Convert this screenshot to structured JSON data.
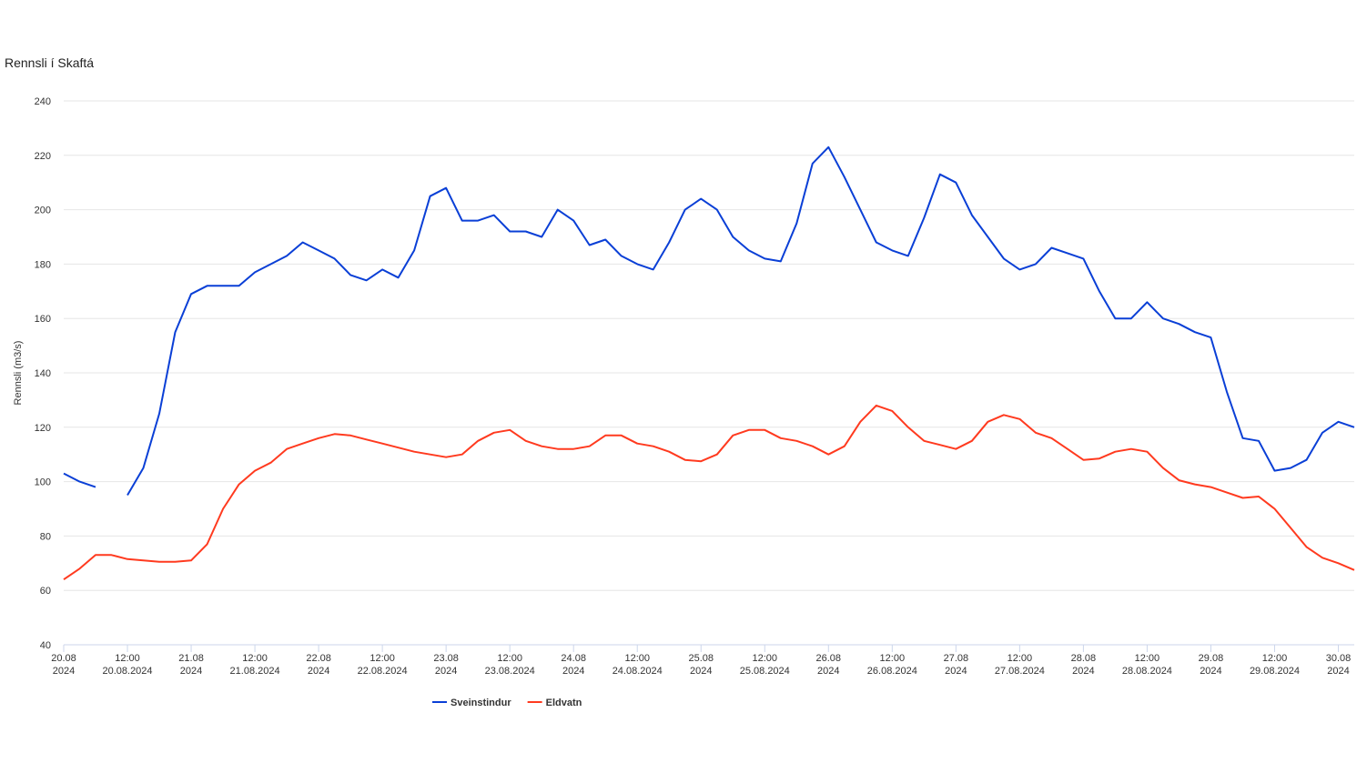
{
  "chart_data": {
    "type": "line",
    "title": "Rennsli í Skaftá",
    "y_label": "Rennsli (m3/s)",
    "x": [
      "2024-08-20 00:00",
      "2024-08-20 03:00",
      "2024-08-20 06:00",
      "2024-08-20 09:00",
      "2024-08-20 12:00",
      "2024-08-20 15:00",
      "2024-08-20 18:00",
      "2024-08-20 21:00",
      "2024-08-21 00:00",
      "2024-08-21 03:00",
      "2024-08-21 06:00",
      "2024-08-21 09:00",
      "2024-08-21 12:00",
      "2024-08-21 15:00",
      "2024-08-21 18:00",
      "2024-08-21 21:00",
      "2024-08-22 00:00",
      "2024-08-22 03:00",
      "2024-08-22 06:00",
      "2024-08-22 09:00",
      "2024-08-22 12:00",
      "2024-08-22 15:00",
      "2024-08-22 18:00",
      "2024-08-22 21:00",
      "2024-08-23 00:00",
      "2024-08-23 03:00",
      "2024-08-23 06:00",
      "2024-08-23 09:00",
      "2024-08-23 12:00",
      "2024-08-23 15:00",
      "2024-08-23 18:00",
      "2024-08-23 21:00",
      "2024-08-24 00:00",
      "2024-08-24 03:00",
      "2024-08-24 06:00",
      "2024-08-24 09:00",
      "2024-08-24 12:00",
      "2024-08-24 15:00",
      "2024-08-24 18:00",
      "2024-08-24 21:00",
      "2024-08-25 00:00",
      "2024-08-25 03:00",
      "2024-08-25 06:00",
      "2024-08-25 09:00",
      "2024-08-25 12:00",
      "2024-08-25 15:00",
      "2024-08-25 18:00",
      "2024-08-25 21:00",
      "2024-08-26 00:00",
      "2024-08-26 03:00",
      "2024-08-26 06:00",
      "2024-08-26 09:00",
      "2024-08-26 12:00",
      "2024-08-26 15:00",
      "2024-08-26 18:00",
      "2024-08-26 21:00",
      "2024-08-27 00:00",
      "2024-08-27 03:00",
      "2024-08-27 06:00",
      "2024-08-27 09:00",
      "2024-08-27 12:00",
      "2024-08-27 15:00",
      "2024-08-27 18:00",
      "2024-08-27 21:00",
      "2024-08-28 00:00",
      "2024-08-28 03:00",
      "2024-08-28 06:00",
      "2024-08-28 09:00",
      "2024-08-28 12:00",
      "2024-08-28 15:00",
      "2024-08-28 18:00",
      "2024-08-28 21:00",
      "2024-08-29 00:00",
      "2024-08-29 03:00",
      "2024-08-29 06:00",
      "2024-08-29 09:00",
      "2024-08-29 12:00",
      "2024-08-29 15:00",
      "2024-08-29 18:00",
      "2024-08-29 21:00",
      "2024-08-30 00:00",
      "2024-08-30 03:00"
    ],
    "series": [
      {
        "name": "Sveinstindur",
        "color": "#0a3fd6",
        "values": [
          103,
          100,
          98,
          null,
          95,
          105,
          125,
          155,
          169,
          172,
          172,
          172,
          177,
          180,
          183,
          188,
          185,
          182,
          176,
          174,
          178,
          175,
          185,
          205,
          208,
          196,
          196,
          198,
          192,
          192,
          190,
          200,
          196,
          187,
          189,
          183,
          180,
          178,
          188,
          200,
          204,
          200,
          190,
          185,
          182,
          181,
          195,
          217,
          223,
          212,
          200,
          188,
          185,
          183,
          197,
          213,
          210,
          198,
          190,
          182,
          178,
          180,
          186,
          184,
          182,
          170,
          160,
          160,
          166,
          160,
          158,
          155,
          153,
          133,
          116,
          115,
          104,
          105,
          108,
          118,
          122,
          120
        ]
      },
      {
        "name": "Eldvatn",
        "color": "#ff3a1f",
        "values": [
          64,
          68,
          73,
          73,
          71.5,
          71,
          70.5,
          70.5,
          71,
          77,
          90,
          99,
          104,
          107,
          112,
          114,
          116,
          117.5,
          117,
          115.5,
          114,
          112.5,
          111,
          110,
          109,
          110,
          115,
          118,
          119,
          115,
          113,
          112,
          112,
          113,
          117,
          117,
          114,
          113,
          111,
          108,
          107.5,
          110,
          117,
          119,
          119,
          116,
          115,
          113,
          110,
          113,
          122,
          128,
          126,
          120,
          115,
          113.5,
          112,
          115,
          122,
          124.5,
          123,
          118,
          116,
          112,
          108,
          108.5,
          111,
          112,
          111,
          105,
          100.5,
          99,
          98,
          96,
          94,
          94.5,
          90,
          83,
          76,
          72,
          70,
          67.5
        ]
      }
    ],
    "xlim": [
      "2024-08-20 00:00",
      "2024-08-30 03:00"
    ],
    "xticks": [
      {
        "value": "2024-08-20 00:00",
        "label": "20.08\n2024"
      },
      {
        "value": "2024-08-20 12:00",
        "label": "12:00\n20.08.2024"
      },
      {
        "value": "2024-08-21 00:00",
        "label": "21.08\n2024"
      },
      {
        "value": "2024-08-21 12:00",
        "label": "12:00\n21.08.2024"
      },
      {
        "value": "2024-08-22 00:00",
        "label": "22.08\n2024"
      },
      {
        "value": "2024-08-22 12:00",
        "label": "12:00\n22.08.2024"
      },
      {
        "value": "2024-08-23 00:00",
        "label": "23.08\n2024"
      },
      {
        "value": "2024-08-23 12:00",
        "label": "12:00\n23.08.2024"
      },
      {
        "value": "2024-08-24 00:00",
        "label": "24.08\n2024"
      },
      {
        "value": "2024-08-24 12:00",
        "label": "12:00\n24.08.2024"
      },
      {
        "value": "2024-08-25 00:00",
        "label": "25.08\n2024"
      },
      {
        "value": "2024-08-25 12:00",
        "label": "12:00\n25.08.2024"
      },
      {
        "value": "2024-08-26 00:00",
        "label": "26.08\n2024"
      },
      {
        "value": "2024-08-26 12:00",
        "label": "12:00\n26.08.2024"
      },
      {
        "value": "2024-08-27 00:00",
        "label": "27.08\n2024"
      },
      {
        "value": "2024-08-27 12:00",
        "label": "12:00\n27.08.2024"
      },
      {
        "value": "2024-08-28 00:00",
        "label": "28.08\n2024"
      },
      {
        "value": "2024-08-28 12:00",
        "label": "12:00\n28.08.2024"
      },
      {
        "value": "2024-08-29 00:00",
        "label": "29.08\n2024"
      },
      {
        "value": "2024-08-29 12:00",
        "label": "12:00\n29.08.2024"
      },
      {
        "value": "2024-08-30 00:00",
        "label": "30.08\n2024"
      }
    ],
    "ylim": [
      40,
      240
    ],
    "yticks": [
      40,
      60,
      80,
      100,
      120,
      140,
      160,
      180,
      200,
      220,
      240
    ],
    "grid": true
  }
}
